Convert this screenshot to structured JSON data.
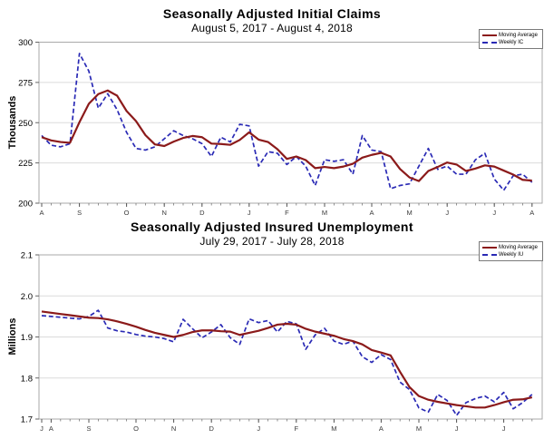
{
  "figure": {
    "background_color": "#FFFFFF",
    "frame_color": "#AAAAAA",
    "gridline_color": "#DBDBDB",
    "tick_color": "#777777",
    "axis_text_color": "#000000",
    "month_label_color": "#3a3a3a"
  },
  "chart_data": [
    {
      "type": "line",
      "title": "Seasonally Adjusted Initial Claims",
      "subtitle": "August 5, 2017 - August 4, 2018",
      "ylabel": "Thousands",
      "ylim": [
        200,
        300
      ],
      "y_tick_labels": [
        "300",
        "275",
        "250",
        "225",
        "200"
      ],
      "y_tick_values": [
        300,
        275,
        250,
        225,
        200
      ],
      "grid": true,
      "legend_position": "top-right",
      "x_unit": "week",
      "x_month_labels": [
        "A",
        "S",
        "O",
        "N",
        "D",
        "J",
        "F",
        "M",
        "A",
        "M",
        "J",
        "J",
        "A"
      ],
      "x_month_indices": [
        0,
        4,
        9,
        13,
        17,
        22,
        26,
        30,
        35,
        39,
        43,
        48,
        52
      ],
      "series": [
        {
          "name": "Moving Average",
          "color": "#8B1A1A",
          "line_style": "solid",
          "values": [
            241,
            239,
            238,
            237.5,
            250.25,
            261.75,
            267.75,
            270,
            266.75,
            257.25,
            251,
            242.25,
            236.5,
            235.5,
            238.25,
            240.5,
            241.75,
            241,
            237,
            236.75,
            236.25,
            239.25,
            244,
            239.5,
            238,
            233.5,
            227.5,
            229,
            226.75,
            221.75,
            222.5,
            221.75,
            222.75,
            224.5,
            228.25,
            230,
            231.25,
            229,
            221.25,
            216,
            213.75,
            220,
            222.5,
            225.25,
            224,
            220,
            221.5,
            223.5,
            222.75,
            220.25,
            217.75,
            214.5,
            214
          ]
        },
        {
          "name": "Weekly IC",
          "color": "#2A2AB5",
          "line_style": "dashed",
          "values": [
            242,
            236,
            235,
            237,
            293,
            282,
            259,
            268,
            258,
            244,
            234,
            233,
            235,
            240,
            245,
            242,
            240,
            237,
            229,
            241,
            238,
            249,
            248,
            223,
            232,
            231,
            224,
            229,
            223,
            211,
            227,
            226,
            227,
            218,
            242,
            233,
            232,
            209,
            211,
            212,
            223,
            234,
            221,
            223,
            218,
            218,
            227,
            231,
            215,
            208,
            217,
            218,
            213
          ]
        }
      ]
    },
    {
      "type": "line",
      "title": "Seasonally Adjusted Insured Unemployment",
      "subtitle": "July 29, 2017 - July 28, 2018",
      "ylabel": "Millions",
      "ylim": [
        1.7,
        2.1
      ],
      "y_tick_labels": [
        "2.1",
        "2.0",
        "1.9",
        "1.8",
        "1.7"
      ],
      "y_tick_values": [
        2.1,
        2.0,
        1.9,
        1.8,
        1.7
      ],
      "grid": true,
      "legend_position": "top-right",
      "x_unit": "week",
      "x_month_labels": [
        "J",
        "A",
        "S",
        "O",
        "N",
        "D",
        "J",
        "F",
        "M",
        "A",
        "M",
        "J",
        "J"
      ],
      "x_month_indices": [
        0,
        1,
        5,
        10,
        14,
        18,
        23,
        27,
        31,
        36,
        40,
        44,
        49
      ],
      "series": [
        {
          "name": "Moving Average",
          "color": "#8B1A1A",
          "line_style": "solid",
          "values": [
            1.962,
            1.959,
            1.956,
            1.953,
            1.95,
            1.947,
            1.946,
            1.943,
            1.938,
            1.932,
            1.925,
            1.917,
            1.91,
            1.905,
            1.9,
            1.905,
            1.912,
            1.916,
            1.916,
            1.914,
            1.913,
            1.905,
            1.91,
            1.915,
            1.922,
            1.93,
            1.932,
            1.93,
            1.92,
            1.913,
            1.908,
            1.903,
            1.895,
            1.89,
            1.882,
            1.868,
            1.862,
            1.855,
            1.815,
            1.778,
            1.756,
            1.747,
            1.742,
            1.738,
            1.734,
            1.731,
            1.728,
            1.728,
            1.734,
            1.741,
            1.747,
            1.748,
            1.753
          ]
        },
        {
          "name": "Weekly IU",
          "color": "#2A2AB5",
          "line_style": "dashed",
          "values": [
            1.952,
            1.95,
            1.948,
            1.946,
            1.944,
            1.95,
            1.965,
            1.922,
            1.915,
            1.912,
            1.906,
            1.902,
            1.9,
            1.896,
            1.888,
            1.943,
            1.92,
            1.898,
            1.912,
            1.93,
            1.898,
            1.882,
            1.944,
            1.935,
            1.94,
            1.912,
            1.938,
            1.932,
            1.87,
            1.905,
            1.921,
            1.89,
            1.882,
            1.89,
            1.852,
            1.838,
            1.857,
            1.845,
            1.79,
            1.772,
            1.727,
            1.717,
            1.76,
            1.745,
            1.709,
            1.74,
            1.75,
            1.756,
            1.742,
            1.765,
            1.725,
            1.74,
            1.76
          ]
        }
      ]
    }
  ]
}
